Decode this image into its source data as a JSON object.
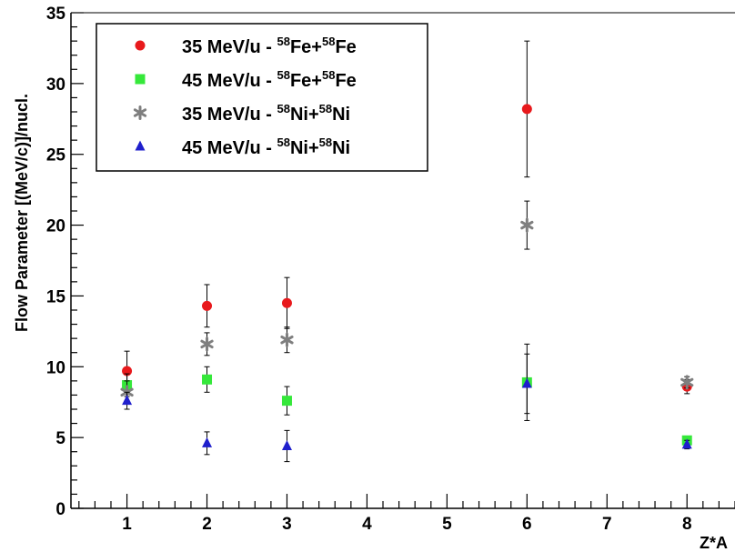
{
  "chart_data": {
    "type": "scatter",
    "xlabel": "Z*A",
    "ylabel": "Flow Parameter [(MeV/c)]/nucl.",
    "xlim": [
      0.3,
      8.6
    ],
    "ylim": [
      0,
      35
    ],
    "xticks": [
      1,
      2,
      3,
      4,
      5,
      6,
      7,
      8
    ],
    "yticks": [
      0,
      5,
      10,
      15,
      20,
      25,
      30,
      35
    ],
    "grid": false,
    "legend_position": "top-left",
    "series": [
      {
        "name": "35 MeV/u - 58Fe+58Fe",
        "legend": {
          "prefix": "35 MeV/u - ",
          "a1": "58",
          "e1": "Fe+",
          "a2": "58",
          "e2": "Fe"
        },
        "color": "#e8191c",
        "marker": "circle",
        "points": [
          {
            "x": 1,
            "y": 9.7,
            "err": 1.4
          },
          {
            "x": 2,
            "y": 14.3,
            "err": 1.5
          },
          {
            "x": 3,
            "y": 14.5,
            "err": 1.8
          },
          {
            "x": 6,
            "y": 28.2,
            "err": 4.8
          },
          {
            "x": 8,
            "y": 8.6,
            "err": 0.5
          }
        ]
      },
      {
        "name": "45 MeV/u - 58Fe+58Fe",
        "legend": {
          "prefix": "45 MeV/u - ",
          "a1": "58",
          "e1": "Fe+",
          "a2": "58",
          "e2": "Fe"
        },
        "color": "#35e83a",
        "marker": "square",
        "points": [
          {
            "x": 1,
            "y": 8.7,
            "err": 0.8
          },
          {
            "x": 2,
            "y": 9.1,
            "err": 0.9
          },
          {
            "x": 3,
            "y": 7.6,
            "err": 1.0
          },
          {
            "x": 6,
            "y": 8.9,
            "err": 2.7
          },
          {
            "x": 8,
            "y": 4.8,
            "err": 0.3
          }
        ]
      },
      {
        "name": "35 MeV/u - 58Ni+58Ni",
        "legend": {
          "prefix": "35 MeV/u - ",
          "a1": "58",
          "e1": "Ni+",
          "a2": "58",
          "e2": "Ni"
        },
        "color": "#7f7f7f",
        "marker": "star",
        "points": [
          {
            "x": 1,
            "y": 8.2,
            "err": 0.8
          },
          {
            "x": 2,
            "y": 11.6,
            "err": 0.8
          },
          {
            "x": 3,
            "y": 11.9,
            "err": 0.9
          },
          {
            "x": 6,
            "y": 20.0,
            "err": 1.7
          },
          {
            "x": 8,
            "y": 8.9,
            "err": 0.4
          }
        ]
      },
      {
        "name": "45 MeV/u - 58Ni+58Ni",
        "legend": {
          "prefix": "45 MeV/u - ",
          "a1": "58",
          "e1": "Ni+",
          "a2": "58",
          "e2": "Ni"
        },
        "color": "#1f1fcc",
        "marker": "triangle",
        "points": [
          {
            "x": 1,
            "y": 7.6,
            "err": 0.6
          },
          {
            "x": 2,
            "y": 4.6,
            "err": 0.8
          },
          {
            "x": 3,
            "y": 4.4,
            "err": 1.1
          },
          {
            "x": 6,
            "y": 8.8,
            "err": 2.1
          },
          {
            "x": 8,
            "y": 4.5,
            "err": 0.3
          }
        ]
      }
    ]
  }
}
